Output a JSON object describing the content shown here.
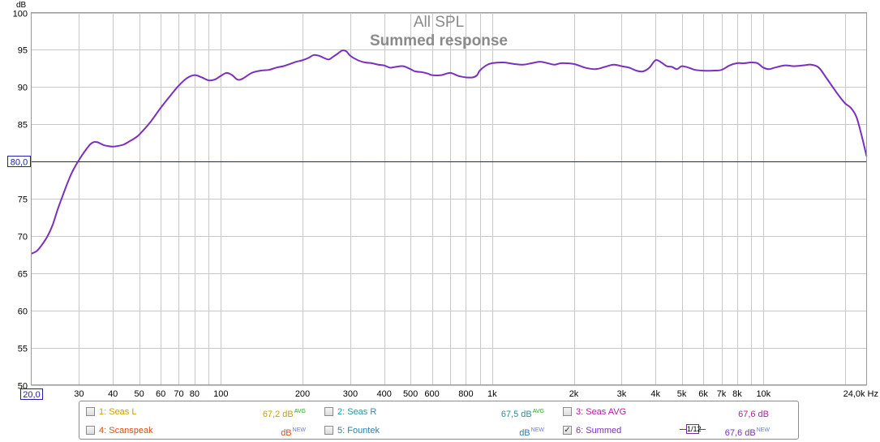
{
  "chart_data": {
    "type": "line",
    "title": "All SPL",
    "subtitle": "Summed response",
    "xscale": "log",
    "xlim": [
      20,
      24000
    ],
    "ylim": [
      50,
      100
    ],
    "ylabel": "dB",
    "grid": true,
    "x_ticks": [
      {
        "v": 20,
        "label": "20,0"
      },
      {
        "v": 30,
        "label": "30"
      },
      {
        "v": 40,
        "label": "40"
      },
      {
        "v": 50,
        "label": "50"
      },
      {
        "v": 60,
        "label": "60"
      },
      {
        "v": 70,
        "label": "70"
      },
      {
        "v": 80,
        "label": "80"
      },
      {
        "v": 100,
        "label": "100"
      },
      {
        "v": 200,
        "label": "200"
      },
      {
        "v": 300,
        "label": "300"
      },
      {
        "v": 400,
        "label": "400"
      },
      {
        "v": 500,
        "label": "500"
      },
      {
        "v": 600,
        "label": "600"
      },
      {
        "v": 800,
        "label": "800"
      },
      {
        "v": 1000,
        "label": "1k"
      },
      {
        "v": 2000,
        "label": "2k"
      },
      {
        "v": 3000,
        "label": "3k"
      },
      {
        "v": 4000,
        "label": "4k"
      },
      {
        "v": 5000,
        "label": "5k"
      },
      {
        "v": 6000,
        "label": "6k"
      },
      {
        "v": 7000,
        "label": "7k"
      },
      {
        "v": 8000,
        "label": "8k"
      },
      {
        "v": 10000,
        "label": "10k"
      },
      {
        "v": 24000,
        "label": "24,0k Hz"
      }
    ],
    "y_ticks": [
      100,
      95,
      90,
      85,
      80,
      75,
      70,
      65,
      60,
      55,
      50
    ],
    "y_cursor": {
      "value": 80,
      "label": "80,0"
    },
    "series": [
      {
        "name": "6: Summed",
        "color": "#7b2fbe",
        "points": [
          [
            20,
            67.6
          ],
          [
            21,
            68.0
          ],
          [
            22,
            68.9
          ],
          [
            23,
            70.0
          ],
          [
            24,
            71.5
          ],
          [
            25,
            73.5
          ],
          [
            26,
            75.2
          ],
          [
            27,
            76.8
          ],
          [
            28,
            78.2
          ],
          [
            29,
            79.3
          ],
          [
            30,
            80.2
          ],
          [
            31,
            81.0
          ],
          [
            32,
            81.7
          ],
          [
            33,
            82.3
          ],
          [
            34,
            82.6
          ],
          [
            35,
            82.6
          ],
          [
            36,
            82.4
          ],
          [
            37,
            82.2
          ],
          [
            38,
            82.1
          ],
          [
            40,
            82.0
          ],
          [
            42,
            82.1
          ],
          [
            44,
            82.3
          ],
          [
            46,
            82.7
          ],
          [
            48,
            83.1
          ],
          [
            50,
            83.6
          ],
          [
            55,
            85.3
          ],
          [
            60,
            87.2
          ],
          [
            65,
            88.8
          ],
          [
            70,
            90.2
          ],
          [
            75,
            91.2
          ],
          [
            80,
            91.6
          ],
          [
            85,
            91.3
          ],
          [
            90,
            90.9
          ],
          [
            95,
            91.0
          ],
          [
            100,
            91.5
          ],
          [
            105,
            91.9
          ],
          [
            110,
            91.6
          ],
          [
            115,
            91.0
          ],
          [
            120,
            91.1
          ],
          [
            130,
            91.9
          ],
          [
            140,
            92.2
          ],
          [
            150,
            92.3
          ],
          [
            160,
            92.6
          ],
          [
            170,
            92.8
          ],
          [
            180,
            93.1
          ],
          [
            190,
            93.4
          ],
          [
            200,
            93.6
          ],
          [
            210,
            93.9
          ],
          [
            220,
            94.3
          ],
          [
            230,
            94.2
          ],
          [
            240,
            93.9
          ],
          [
            250,
            93.7
          ],
          [
            260,
            94.1
          ],
          [
            270,
            94.5
          ],
          [
            280,
            94.9
          ],
          [
            290,
            94.8
          ],
          [
            300,
            94.2
          ],
          [
            320,
            93.6
          ],
          [
            340,
            93.3
          ],
          [
            360,
            93.2
          ],
          [
            380,
            93.0
          ],
          [
            400,
            92.9
          ],
          [
            420,
            92.6
          ],
          [
            440,
            92.7
          ],
          [
            470,
            92.8
          ],
          [
            500,
            92.4
          ],
          [
            520,
            92.1
          ],
          [
            550,
            92.0
          ],
          [
            580,
            91.8
          ],
          [
            600,
            91.6
          ],
          [
            650,
            91.6
          ],
          [
            700,
            91.9
          ],
          [
            750,
            91.5
          ],
          [
            800,
            91.3
          ],
          [
            850,
            91.3
          ],
          [
            880,
            91.6
          ],
          [
            900,
            92.2
          ],
          [
            950,
            92.9
          ],
          [
            1000,
            93.2
          ],
          [
            1100,
            93.3
          ],
          [
            1200,
            93.1
          ],
          [
            1300,
            93.0
          ],
          [
            1400,
            93.2
          ],
          [
            1500,
            93.4
          ],
          [
            1600,
            93.2
          ],
          [
            1700,
            93.0
          ],
          [
            1800,
            93.2
          ],
          [
            2000,
            93.1
          ],
          [
            2200,
            92.6
          ],
          [
            2400,
            92.4
          ],
          [
            2600,
            92.7
          ],
          [
            2800,
            93.0
          ],
          [
            3000,
            92.8
          ],
          [
            3200,
            92.6
          ],
          [
            3400,
            92.2
          ],
          [
            3600,
            92.1
          ],
          [
            3800,
            92.6
          ],
          [
            4000,
            93.6
          ],
          [
            4200,
            93.3
          ],
          [
            4400,
            92.8
          ],
          [
            4600,
            92.7
          ],
          [
            4800,
            92.4
          ],
          [
            5000,
            92.8
          ],
          [
            5300,
            92.6
          ],
          [
            5600,
            92.3
          ],
          [
            6000,
            92.2
          ],
          [
            6500,
            92.2
          ],
          [
            7000,
            92.3
          ],
          [
            7500,
            92.9
          ],
          [
            8000,
            93.2
          ],
          [
            8500,
            93.2
          ],
          [
            9000,
            93.3
          ],
          [
            9500,
            93.2
          ],
          [
            10000,
            92.6
          ],
          [
            10500,
            92.4
          ],
          [
            11000,
            92.6
          ],
          [
            12000,
            92.9
          ],
          [
            13000,
            92.8
          ],
          [
            14000,
            92.9
          ],
          [
            15000,
            93.0
          ],
          [
            16000,
            92.6
          ],
          [
            17000,
            91.3
          ],
          [
            18000,
            90.0
          ],
          [
            19000,
            88.8
          ],
          [
            20000,
            87.8
          ],
          [
            21000,
            87.2
          ],
          [
            22000,
            86.0
          ],
          [
            23000,
            83.5
          ],
          [
            24000,
            80.7
          ]
        ]
      }
    ]
  },
  "legend": [
    {
      "name": "1: Seas L",
      "value": "67,2 dB",
      "sup": "AVG",
      "color": "#c8a000",
      "sup_color": "#2da02d",
      "checked": false
    },
    {
      "name": "2: Seas R",
      "value": "67,5 dB",
      "sup": "AVG",
      "color": "#2a8fa0",
      "sup_color": "#2da02d",
      "checked": false
    },
    {
      "name": "3: Seas AVG",
      "value": "67,6 dB",
      "sup": "",
      "color": "#b020a0",
      "sup_color": "#b020a0",
      "checked": false
    },
    {
      "name": "4: Scanspeak",
      "value": "dB",
      "sup": "NEW",
      "color": "#e04a10",
      "sup_color": "#6a7ae0",
      "checked": false
    },
    {
      "name": "5: Fountek",
      "value": "dB",
      "sup": "NEW",
      "color": "#2a7fb0",
      "sup_color": "#6a7ae0",
      "checked": false
    },
    {
      "name": "6: Summed",
      "value": "67,6 dB",
      "sup": "NEW",
      "color": "#7b2fbe",
      "sup_color": "#6a7ae0",
      "checked": true
    }
  ],
  "smoothing_label": "1/12",
  "check_mark": "✓"
}
